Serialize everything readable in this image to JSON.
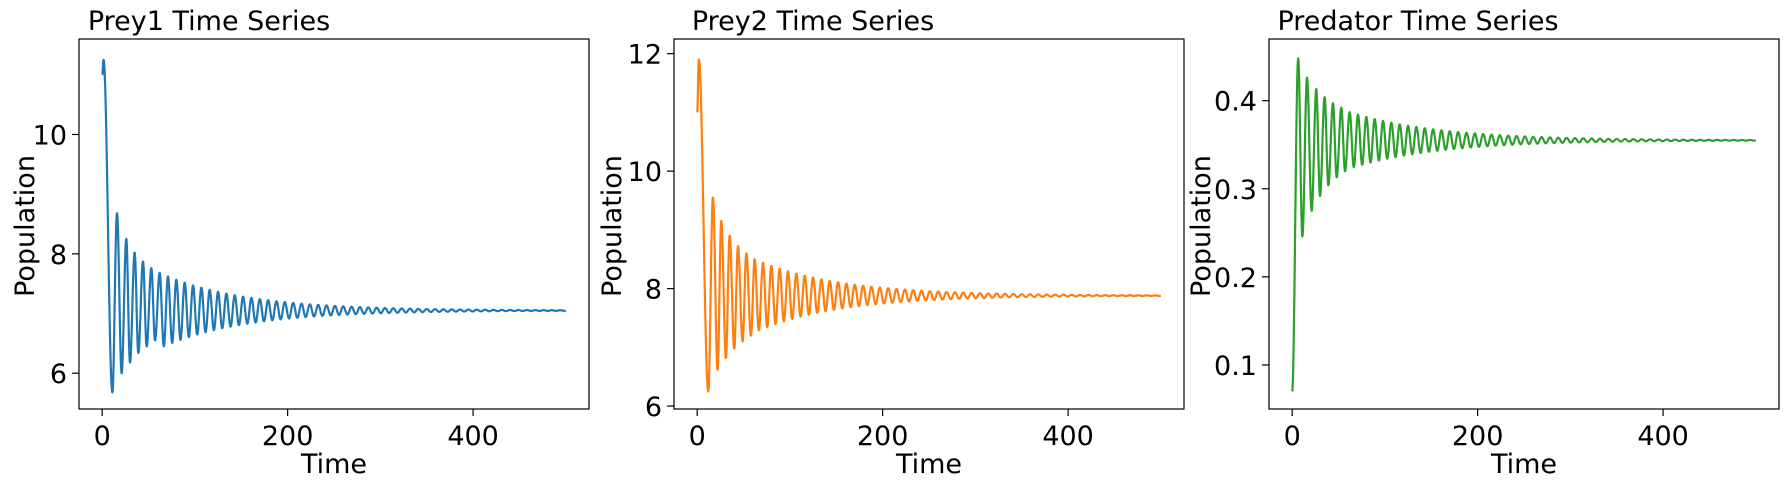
{
  "chart_data": [
    {
      "type": "line",
      "title": "Prey1 Time Series",
      "xlabel": "Time",
      "ylabel": "Population",
      "xlim": [
        -25,
        525
      ],
      "ylim": [
        5.4,
        11.6
      ],
      "xticks": [
        0,
        200,
        400
      ],
      "yticks": [
        6,
        8,
        10
      ],
      "ytick_labels": [
        "6",
        "8",
        "10"
      ],
      "grid": false,
      "series": [
        {
          "color": "#1f77b4",
          "t_end": 500,
          "initial": 11.0,
          "first_extreme": 11.25,
          "first_extreme_time": 1.5,
          "equilibrium": 7.05,
          "trough_time": 11,
          "trough_value": 5.68,
          "peak_times": [
            16,
            26,
            35,
            44,
            53,
            62
          ],
          "peak_values": [
            8.68,
            8.25,
            8.02,
            7.87,
            7.76,
            7.68
          ],
          "trough_times": [
            21,
            30,
            39,
            48,
            57
          ],
          "trough_values": [
            6.0,
            6.18,
            6.34,
            6.45,
            6.55
          ],
          "period": 9.0,
          "decay_time": 90
        }
      ]
    },
    {
      "type": "line",
      "title": "Prey2 Time Series",
      "xlabel": "Time",
      "ylabel": "Population",
      "xlim": [
        -25,
        525
      ],
      "ylim": [
        5.95,
        12.25
      ],
      "xticks": [
        0,
        200,
        400
      ],
      "yticks": [
        6,
        8,
        10,
        12
      ],
      "ytick_labels": [
        "6",
        "8",
        "10",
        "12"
      ],
      "grid": false,
      "series": [
        {
          "color": "#ff7f0e",
          "t_end": 500,
          "initial": 11.0,
          "first_extreme": 11.9,
          "first_extreme_time": 1.8,
          "equilibrium": 7.88,
          "trough_time": 12,
          "trough_value": 6.25,
          "peak_times": [
            17,
            26,
            35,
            44,
            53,
            62
          ],
          "peak_values": [
            9.55,
            9.15,
            8.9,
            8.72,
            8.6,
            8.5
          ],
          "trough_times": [
            22,
            31,
            40,
            49,
            58
          ],
          "trough_values": [
            6.62,
            6.82,
            6.98,
            7.1,
            7.2
          ],
          "period": 9.0,
          "decay_time": 90
        }
      ]
    },
    {
      "type": "line",
      "title": "Predator Time Series",
      "xlabel": "Time",
      "ylabel": "Population",
      "xlim": [
        -25,
        525
      ],
      "ylim": [
        0.05,
        0.47
      ],
      "xticks": [
        0,
        200,
        400
      ],
      "yticks": [
        0.1,
        0.2,
        0.3,
        0.4
      ],
      "ytick_labels": [
        "0.1",
        "0.2",
        "0.3",
        "0.4"
      ],
      "grid": false,
      "series": [
        {
          "color": "#2ca02c",
          "t_end": 500,
          "initial": 0.07,
          "first_extreme": 0.07,
          "first_extreme_time": 0,
          "equilibrium": 0.355,
          "trough_time": 6.5,
          "trough_value": 0.448,
          "peak_times": [
            16,
            26,
            35,
            44,
            53,
            62
          ],
          "peak_values": [
            0.426,
            0.413,
            0.404,
            0.397,
            0.392,
            0.387
          ],
          "trough_times": [
            11,
            21,
            30,
            39,
            48,
            57
          ],
          "trough_values": [
            0.246,
            0.275,
            0.292,
            0.304,
            0.313,
            0.32
          ],
          "period": 9.0,
          "decay_time": 95
        }
      ]
    }
  ]
}
